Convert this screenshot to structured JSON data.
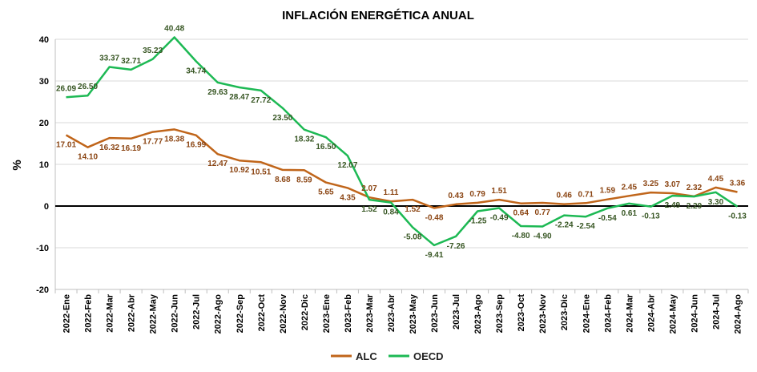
{
  "chart_data": {
    "type": "line",
    "title": "INFLACIÓN ENERGÉTICA ANUAL",
    "ylabel": "%",
    "xlabel": "",
    "ylim": [
      -20,
      40
    ],
    "yticks": [
      -20,
      -10,
      0,
      10,
      20,
      30,
      40
    ],
    "grid": true,
    "legend": "bottom",
    "categories": [
      "2022-Ene",
      "2022-Feb",
      "2022-Mar",
      "2022-Abr",
      "2022-May",
      "2022-Jun",
      "2022-Jul",
      "2022-Ago",
      "2022-Sep",
      "2022-Oct",
      "2022-Nov",
      "2022-Dic",
      "2023-Ene",
      "2023-Feb",
      "2023-Mar",
      "2023-Abr",
      "2023-May",
      "2023-Jun",
      "2023-Jul",
      "2023-Ago",
      "2023-Sep",
      "2023-Oct",
      "2023-Nov",
      "2023-Dic",
      "2024-Ene",
      "2024-Feb",
      "2024-Mar",
      "2024-Abr",
      "2024-May",
      "2024-Jun",
      "2024-Jul",
      "2024-Ago"
    ],
    "series": [
      {
        "name": "ALC",
        "color": "#C0651A",
        "values": [
          17.01,
          14.1,
          16.32,
          16.19,
          17.77,
          18.38,
          16.99,
          12.47,
          10.92,
          10.51,
          8.68,
          8.59,
          5.65,
          4.35,
          2.07,
          1.11,
          1.52,
          -0.48,
          0.43,
          0.79,
          1.51,
          0.64,
          0.77,
          0.46,
          0.71,
          1.59,
          2.45,
          3.25,
          3.07,
          2.32,
          4.45,
          3.36
        ],
        "labels": [
          "17.01",
          "14.10",
          "16.32",
          "16.19",
          "17.77",
          "18.38",
          "16.99",
          "12.47",
          "10.92",
          "10.51",
          "8.68",
          "8.59",
          "5.65",
          "4.35",
          "2.07",
          "1.11",
          "1.52",
          "-0.48",
          "0.43",
          "0.79",
          "1.51",
          "0.64",
          "0.77",
          "0.46",
          "0.71",
          "1.59",
          "2.45",
          "3.25",
          "3.07",
          "2.32",
          "4.45",
          "3.36"
        ]
      },
      {
        "name": "OECD",
        "color": "#1DB954",
        "values": [
          26.09,
          26.5,
          33.37,
          32.71,
          35.23,
          40.48,
          34.74,
          29.63,
          28.47,
          27.72,
          23.5,
          18.32,
          16.5,
          12.07,
          1.52,
          0.84,
          -5.08,
          -9.41,
          -7.26,
          -1.25,
          -0.49,
          -4.8,
          -4.9,
          -2.24,
          -2.54,
          -0.54,
          0.61,
          -0.13,
          2.49,
          2.29,
          3.3,
          -0.13
        ],
        "labels": [
          "26.09",
          "26.50",
          "33.37",
          "32.71",
          "35.23",
          "40.48",
          "34.74",
          "29.63",
          "28.47",
          "27.72",
          "23.50",
          "18.32",
          "16.50",
          "12.07",
          "1.52",
          "0.84",
          "-5.08",
          "-9.41",
          "-7.26",
          "-1.25",
          "-0.49",
          "-4.80",
          "-4.90",
          "-2.24",
          "-2.54",
          "-0.54",
          "0.61",
          "-0.13",
          "2.49",
          "2.29",
          "3.30",
          "-0.13"
        ]
      }
    ]
  }
}
